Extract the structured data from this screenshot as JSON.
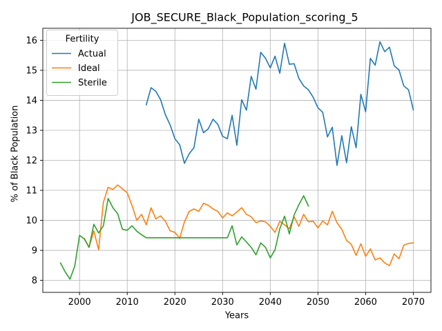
{
  "chart_data": {
    "type": "line",
    "title": "JOB_SECURE_Black_Population_scoring_5",
    "xlabel": "Years",
    "ylabel": "% of Black Population",
    "xlim": [
      1992.3,
      2073.7
    ],
    "ylim": [
      7.6,
      16.4
    ],
    "xticks": [
      2000,
      2010,
      2020,
      2030,
      2040,
      2050,
      2060,
      2070
    ],
    "yticks": [
      8,
      9,
      10,
      11,
      12,
      13,
      14,
      15,
      16
    ],
    "grid": true,
    "legend": {
      "title": "Fertility",
      "position": "upper-left"
    },
    "series": [
      {
        "name": "Actual",
        "color": "#1f77b4",
        "x": [
          2014,
          2015,
          2016,
          2017,
          2018,
          2019,
          2020,
          2021,
          2022,
          2023,
          2024,
          2025,
          2026,
          2027,
          2028,
          2029,
          2030,
          2031,
          2032,
          2033,
          2034,
          2035,
          2036,
          2037,
          2038,
          2039,
          2040,
          2041,
          2042,
          2043,
          2044,
          2045,
          2046,
          2047,
          2048,
          2049,
          2050,
          2051,
          2052,
          2053,
          2054,
          2055,
          2056,
          2057,
          2058,
          2059,
          2060,
          2061,
          2062,
          2063,
          2064,
          2065,
          2066,
          2067,
          2068,
          2069,
          2070
        ],
        "y": [
          13.85,
          14.42,
          14.3,
          14.02,
          13.52,
          13.18,
          12.72,
          12.52,
          11.9,
          12.22,
          12.42,
          13.37,
          12.92,
          13.05,
          13.37,
          13.2,
          12.8,
          12.72,
          13.5,
          12.5,
          14.02,
          13.67,
          14.8,
          14.37,
          15.6,
          15.4,
          15.08,
          15.47,
          14.9,
          15.9,
          15.2,
          15.22,
          14.73,
          14.48,
          14.35,
          14.1,
          13.75,
          13.6,
          12.78,
          13.1,
          11.83,
          12.82,
          11.92,
          13.12,
          12.42,
          14.2,
          13.62,
          15.4,
          15.17,
          15.95,
          15.62,
          15.77,
          15.15,
          15.01,
          14.48,
          14.35,
          13.68
        ]
      },
      {
        "name": "Ideal",
        "color": "#ff7f0e",
        "x": [
          2001,
          2002,
          2003,
          2004,
          2005,
          2006,
          2007,
          2008,
          2009,
          2010,
          2011,
          2012,
          2013,
          2014,
          2015,
          2016,
          2017,
          2018,
          2019,
          2020,
          2021,
          2022,
          2023,
          2024,
          2025,
          2026,
          2027,
          2028,
          2029,
          2030,
          2031,
          2032,
          2033,
          2034,
          2035,
          2036,
          2037,
          2038,
          2039,
          2040,
          2041,
          2042,
          2043,
          2044,
          2045,
          2046,
          2047,
          2048,
          2049,
          2050,
          2051,
          2052,
          2053,
          2054,
          2055,
          2056,
          2057,
          2058,
          2059,
          2060,
          2061,
          2062,
          2063,
          2064,
          2065,
          2066,
          2067,
          2068,
          2069,
          2070
        ],
        "y": [
          9.4,
          9.1,
          9.65,
          9.02,
          10.6,
          11.1,
          11.03,
          11.18,
          11.05,
          10.92,
          10.5,
          10.0,
          10.2,
          9.85,
          10.42,
          10.05,
          10.15,
          9.97,
          9.65,
          9.6,
          9.4,
          9.95,
          10.3,
          10.38,
          10.3,
          10.57,
          10.5,
          10.38,
          10.3,
          10.08,
          10.25,
          10.15,
          10.28,
          10.42,
          10.2,
          10.12,
          9.92,
          9.98,
          9.95,
          9.8,
          9.6,
          9.97,
          9.85,
          9.72,
          10.12,
          9.8,
          10.2,
          9.95,
          9.97,
          9.75,
          9.98,
          9.85,
          10.3,
          9.92,
          9.7,
          9.33,
          9.2,
          8.83,
          9.22,
          8.8,
          9.05,
          8.68,
          8.75,
          8.58,
          8.49,
          8.88,
          8.72,
          9.17,
          9.23,
          9.25
        ]
      },
      {
        "name": "Sterile",
        "color": "#2ca02c",
        "x": [
          1996,
          1997,
          1998,
          1999,
          2000,
          2001,
          2002,
          2003,
          2004,
          2005,
          2006,
          2007,
          2008,
          2009,
          2010,
          2011,
          2012,
          2013,
          2014,
          2015,
          2016,
          2017,
          2018,
          2019,
          2020,
          2021,
          2022,
          2023,
          2024,
          2025,
          2026,
          2027,
          2028,
          2029,
          2030,
          2031,
          2032,
          2033,
          2034,
          2035,
          2036,
          2037,
          2038,
          2039,
          2040,
          2041,
          2042,
          2043,
          2044,
          2045,
          2046,
          2047,
          2048
        ],
        "y": [
          8.58,
          8.28,
          8.04,
          8.48,
          9.5,
          9.38,
          9.1,
          9.87,
          9.58,
          9.82,
          10.73,
          10.42,
          10.22,
          9.7,
          9.67,
          9.82,
          9.64,
          9.52,
          9.42,
          9.42,
          9.42,
          9.42,
          9.42,
          9.42,
          9.42,
          9.42,
          9.42,
          9.42,
          9.42,
          9.42,
          9.42,
          9.42,
          9.42,
          9.42,
          9.42,
          9.42,
          9.82,
          9.18,
          9.45,
          9.28,
          9.1,
          8.85,
          9.25,
          9.1,
          8.75,
          9.02,
          9.72,
          10.14,
          9.55,
          10.18,
          10.52,
          10.82,
          10.48
        ]
      }
    ]
  }
}
